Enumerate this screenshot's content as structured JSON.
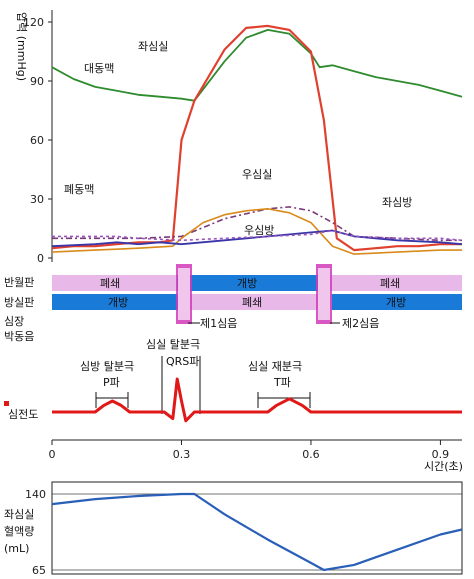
{
  "colors": {
    "aorta": "#2e8b2e",
    "lv": "#e0402e",
    "pulm_artery": "#7a3a7a",
    "rv": "#d98a1a",
    "la": "#3a35a8",
    "ra": "#9a55c0",
    "bar_pink": "#e8b8e8",
    "bar_blue": "#1a7ad8",
    "mark_magenta": "#d23ab8",
    "ecg": "#e01818",
    "volume": "#2a5fb8"
  },
  "labels": {
    "pressure_axis": "압력 (mmHg)",
    "aorta": "대동맥",
    "lv": "좌심실",
    "pulm_artery": "폐동맥",
    "rv": "우심실",
    "la": "좌심방",
    "ra": "우심방",
    "semilunar_valve": "반월판",
    "av_valve": "방실판",
    "heart_sound_1": "심장",
    "heart_sound_2": "박동음",
    "s1": "제1심음",
    "s2": "제2심음",
    "closed": "폐쇄",
    "open": "개방",
    "atrial_depol": "심방 탈분극",
    "p_wave": "P파",
    "ventricular_depol": "심실 탈분극",
    "qrs": "QRS파",
    "ventricular_repol": "심실 재분극",
    "t_wave": "T파",
    "ecg": "심전도",
    "time_axis": "시간(초)",
    "volume_1": "좌심실",
    "volume_2": "혈액량",
    "volume_3": "(mL)"
  },
  "chart_data": [
    {
      "type": "line",
      "ylabel": "압력 (mmHg)",
      "ylim": [
        0,
        125
      ],
      "xlim": [
        0,
        0.95
      ],
      "yticks": [
        "0",
        "30",
        "60",
        "90",
        "120"
      ],
      "series": [
        {
          "name": "대동맥",
          "x": [
            0,
            0.05,
            0.1,
            0.15,
            0.2,
            0.25,
            0.3,
            0.33,
            0.4,
            0.45,
            0.5,
            0.55,
            0.6,
            0.62,
            0.65,
            0.7,
            0.75,
            0.8,
            0.85,
            0.9,
            0.95
          ],
          "y": [
            97,
            91,
            87,
            85,
            83,
            82,
            81,
            80,
            100,
            112,
            116,
            114,
            104,
            97,
            98,
            95,
            92,
            90,
            88,
            85,
            82
          ]
        },
        {
          "name": "좌심실",
          "x": [
            0,
            0.05,
            0.1,
            0.15,
            0.2,
            0.25,
            0.28,
            0.3,
            0.33,
            0.4,
            0.45,
            0.5,
            0.55,
            0.6,
            0.63,
            0.66,
            0.7,
            0.75,
            0.8,
            0.85,
            0.9,
            0.95
          ],
          "y": [
            5,
            6,
            6,
            7,
            8,
            8,
            9,
            60,
            80,
            106,
            117,
            118,
            116,
            105,
            70,
            10,
            4,
            5,
            6,
            6,
            7,
            7
          ]
        },
        {
          "name": "폐동맥",
          "x": [
            0,
            0.1,
            0.2,
            0.3,
            0.4,
            0.5,
            0.55,
            0.6,
            0.65,
            0.7,
            0.8,
            0.9,
            0.95
          ],
          "y": [
            10,
            10,
            10,
            11,
            20,
            25,
            26,
            24,
            18,
            11,
            10,
            9,
            9
          ]
        },
        {
          "name": "우심실",
          "x": [
            0,
            0.1,
            0.2,
            0.28,
            0.3,
            0.35,
            0.4,
            0.45,
            0.5,
            0.55,
            0.6,
            0.65,
            0.7,
            0.8,
            0.9,
            0.95
          ],
          "y": [
            3,
            4,
            5,
            6,
            10,
            18,
            22,
            24,
            25,
            23,
            18,
            6,
            2,
            3,
            4,
            4
          ]
        },
        {
          "name": "좌심방",
          "x": [
            0,
            0.1,
            0.15,
            0.2,
            0.25,
            0.3,
            0.4,
            0.5,
            0.6,
            0.65,
            0.7,
            0.8,
            0.9,
            0.95
          ],
          "y": [
            6,
            7,
            8,
            7,
            8,
            7,
            9,
            11,
            13,
            14,
            11,
            9,
            8,
            7
          ]
        },
        {
          "name": "우심방",
          "x": [
            0,
            0.1,
            0.15,
            0.2,
            0.3,
            0.4,
            0.5,
            0.6,
            0.65,
            0.7,
            0.8,
            0.9,
            0.95
          ],
          "y": [
            11,
            11,
            11,
            10,
            9,
            10,
            11,
            12,
            14,
            11,
            10,
            10,
            9
          ]
        }
      ]
    },
    {
      "type": "line",
      "title": "심전도",
      "x": [
        0,
        0.1,
        0.12,
        0.14,
        0.16,
        0.18,
        0.26,
        0.28,
        0.29,
        0.3,
        0.31,
        0.33,
        0.5,
        0.52,
        0.55,
        0.58,
        0.6,
        0.95
      ],
      "y": [
        0,
        0,
        0.3,
        0.5,
        0.3,
        0,
        0,
        -0.3,
        1.5,
        0.5,
        -0.4,
        0,
        0,
        0.3,
        0.6,
        0.3,
        0,
        0
      ]
    },
    {
      "type": "line",
      "xlabel": "시간(초)",
      "xticks": [
        "0",
        "0.3",
        "0.6",
        "0.9"
      ],
      "ylabel": "좌심실 혈액량 (mL)",
      "ylim": [
        65,
        140
      ],
      "yticks": [
        "65",
        "140"
      ],
      "series": [
        {
          "name": "좌심실 혈액량",
          "x": [
            0,
            0.1,
            0.2,
            0.3,
            0.33,
            0.4,
            0.5,
            0.6,
            0.63,
            0.7,
            0.8,
            0.9,
            0.95
          ],
          "y": [
            130,
            135,
            138,
            140,
            140,
            120,
            95,
            72,
            65,
            70,
            85,
            100,
            105
          ]
        }
      ]
    }
  ]
}
